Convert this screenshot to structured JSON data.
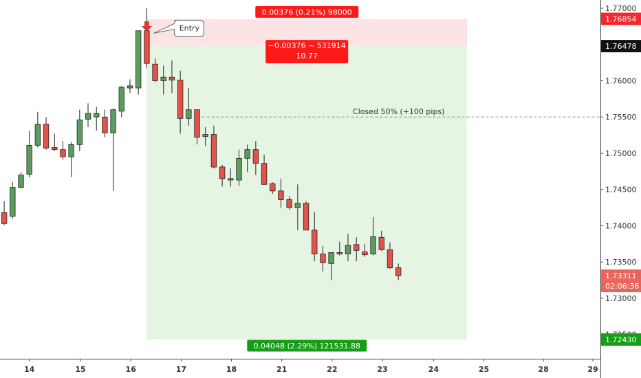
{
  "chart_data": {
    "type": "candlestick",
    "up_color": "#5b9c5f",
    "down_color": "#e2534a",
    "x": [
      0,
      1,
      2,
      3,
      4,
      5,
      6,
      7,
      8,
      9,
      10,
      11,
      12,
      13,
      14,
      15,
      16,
      17,
      18,
      19,
      20,
      21,
      22,
      23,
      24,
      25,
      26,
      27,
      28,
      29,
      30,
      31,
      32,
      33,
      34,
      35,
      36,
      37,
      38,
      39,
      40,
      41,
      42,
      43,
      44,
      45,
      46,
      47
    ],
    "open": [
      1.7418,
      1.7413,
      1.7453,
      1.7471,
      1.7511,
      1.754,
      1.7508,
      1.7505,
      1.7495,
      1.7512,
      1.7547,
      1.755,
      1.755,
      1.7528,
      1.7558,
      1.759,
      1.759,
      1.7669,
      1.7623,
      1.76,
      1.7605,
      1.7601,
      1.7548,
      1.756,
      1.7523,
      1.7526,
      1.7481,
      1.7463,
      1.7463,
      1.7493,
      1.7505,
      1.7486,
      1.7458,
      1.7448,
      1.7436,
      1.7425,
      1.7431,
      1.7394,
      1.7361,
      1.7348,
      1.7363,
      1.7361,
      1.7374,
      1.7364,
      1.7361,
      1.7384,
      1.7367,
      1.7342
    ],
    "high": [
      1.7434,
      1.746,
      1.7474,
      1.7531,
      1.7557,
      1.755,
      1.7527,
      1.7517,
      1.7516,
      1.756,
      1.7569,
      1.7564,
      1.756,
      1.7562,
      1.7593,
      1.7602,
      1.7669,
      1.77,
      1.7631,
      1.7621,
      1.7628,
      1.7614,
      1.759,
      1.756,
      1.7536,
      1.7538,
      1.7484,
      1.7479,
      1.7505,
      1.7512,
      1.7517,
      1.7498,
      1.746,
      1.7465,
      1.7441,
      1.7457,
      1.7434,
      1.7419,
      1.7372,
      1.7363,
      1.7378,
      1.7389,
      1.7384,
      1.7375,
      1.7412,
      1.7393,
      1.7377,
      1.7348
    ],
    "low": [
      1.7401,
      1.741,
      1.7451,
      1.7467,
      1.7508,
      1.7505,
      1.7503,
      1.7491,
      1.7467,
      1.7503,
      1.7536,
      1.7531,
      1.7522,
      1.7448,
      1.755,
      1.7583,
      1.7581,
      1.7617,
      1.7598,
      1.7581,
      1.7583,
      1.7527,
      1.7538,
      1.7512,
      1.751,
      1.7479,
      1.7454,
      1.7454,
      1.7455,
      1.7474,
      1.747,
      1.7457,
      1.7444,
      1.7425,
      1.7422,
      1.7394,
      1.7394,
      1.7351,
      1.7337,
      1.7325,
      1.7359,
      1.7351,
      1.7351,
      1.7357,
      1.7359,
      1.7365,
      1.734,
      1.7325
    ],
    "close": [
      1.7403,
      1.7453,
      1.747,
      1.7511,
      1.754,
      1.7507,
      1.7505,
      1.7495,
      1.7512,
      1.7546,
      1.7555,
      1.7555,
      1.7528,
      1.756,
      1.7591,
      1.7593,
      1.7669,
      1.7624,
      1.76,
      1.7605,
      1.7601,
      1.7548,
      1.756,
      1.7522,
      1.7526,
      1.7481,
      1.7465,
      1.7465,
      1.7493,
      1.7505,
      1.7486,
      1.7457,
      1.7448,
      1.7436,
      1.7425,
      1.7431,
      1.7394,
      1.7361,
      1.7349,
      1.7363,
      1.7361,
      1.7373,
      1.7366,
      1.736,
      1.7385,
      1.7367,
      1.7342,
      1.73311
    ],
    "xlim": [
      -0.5,
      71.1
    ],
    "ylim": [
      1.72165,
      1.77114
    ],
    "xticks": [
      {
        "value": 3,
        "label": "14"
      },
      {
        "value": 9.1,
        "label": "15"
      },
      {
        "value": 15.1,
        "label": "16"
      },
      {
        "value": 21.1,
        "label": "17"
      },
      {
        "value": 27.1,
        "label": "18"
      },
      {
        "value": 33.1,
        "label": "21"
      },
      {
        "value": 39.1,
        "label": "22"
      },
      {
        "value": 45.1,
        "label": "23"
      },
      {
        "value": 51.2,
        "label": "24"
      },
      {
        "value": 57.2,
        "label": "25"
      },
      {
        "value": 64.3,
        "label": "28"
      },
      {
        "value": 70.2,
        "label": "29"
      }
    ],
    "yticks": [
      {
        "value": 1.725,
        "label": "1.72500"
      },
      {
        "value": 1.73,
        "label": "1.73000"
      },
      {
        "value": 1.735,
        "label": "1.73500"
      },
      {
        "value": 1.74,
        "label": "1.74000"
      },
      {
        "value": 1.745,
        "label": "1.74500"
      },
      {
        "value": 1.75,
        "label": "1.75000"
      },
      {
        "value": 1.755,
        "label": "1.75500"
      },
      {
        "value": 1.76,
        "label": "1.76000"
      },
      {
        "value": 1.765,
        "label": "1.76500"
      },
      {
        "value": 1.77,
        "label": "1.77000"
      }
    ],
    "grid": false,
    "current_price": 1.73311,
    "countdown": "02:06:36",
    "entry_label": "Entry",
    "closed_line": {
      "value": 1.755,
      "start": 23,
      "label": "Closed 50% (+100 pips)"
    },
    "position": {
      "start": 17,
      "end": 55.2,
      "stop": 1.76854,
      "entry": 1.76478,
      "target": {
        "value": 1.7243,
        "label": "1.72430"
      },
      "risk_label": "0.00376 (0.21%) 98000",
      "risk_reward_label": "−0.00376 ~ 531914",
      "ratio_label": 10.77,
      "reward_label": "0.04048 (2.29%) 121531.88",
      "stop_color": "#fce4e5",
      "target_color": "#e5f4e3"
    }
  }
}
